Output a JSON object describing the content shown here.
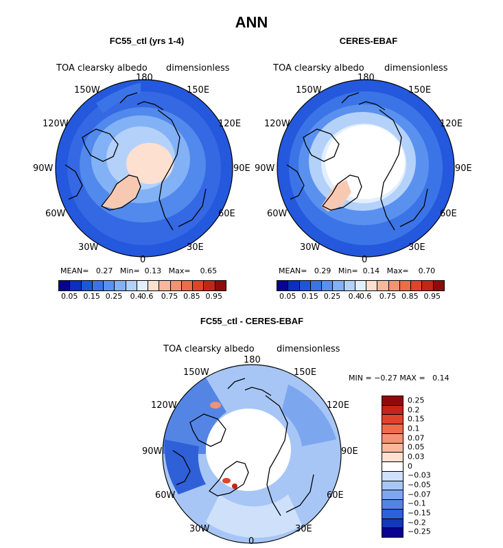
{
  "title": "ANN",
  "chart_data": [
    {
      "type": "polar-map",
      "title": "FC55_ctl (yrs 1-4)",
      "variable": "TOA clearsky albedo",
      "units": "dimensionless",
      "mean_label": "MEAN=",
      "mean": "0.27",
      "min_label": "Min=",
      "min": "0.13",
      "max_label": "Max=",
      "max": "0.65",
      "colorbar_ticks": [
        "0.05",
        "0.15",
        "0.25",
        "0.4",
        "0.6",
        "0.75",
        "0.85",
        "0.95"
      ]
    },
    {
      "type": "polar-map",
      "title": "CERES-EBAF",
      "variable": "TOA clearsky albedo",
      "units": "dimensionless",
      "mean_label": "MEAN=",
      "mean": "0.29",
      "min_label": "Min=",
      "min": "0.14",
      "max_label": "Max=",
      "max": "0.70",
      "colorbar_ticks": [
        "0.05",
        "0.15",
        "0.25",
        "0.4",
        "0.6",
        "0.75",
        "0.85",
        "0.95"
      ]
    },
    {
      "type": "polar-map",
      "title": "FC55_ctl - CERES-EBAF",
      "variable": "TOA clearsky albedo",
      "units": "dimensionless",
      "min_label": "MIN =",
      "min": "−0.27",
      "max_label": "MAX =",
      "max": "0.14",
      "colorbar_ticks": [
        "0.25",
        "0.2",
        "0.15",
        "0.1",
        "0.07",
        "0.05",
        "0.03",
        "0",
        "−0.03",
        "−0.05",
        "−0.07",
        "−0.1",
        "−0.15",
        "−0.2",
        "−0.25"
      ]
    }
  ],
  "longitude_labels": [
    "180",
    "150E",
    "120E",
    "90E",
    "60E",
    "30E",
    "0",
    "30W",
    "60W",
    "90W",
    "120W",
    "150W"
  ],
  "colors": {
    "abs_scale": [
      "#08048f",
      "#0a2fc6",
      "#1f55dc",
      "#3b74e6",
      "#5a91ef",
      "#82b1f5",
      "#b4d1fa",
      "#e2effd",
      "#fde0d0",
      "#f7b89e",
      "#f29372",
      "#ec6c4b",
      "#e2432a",
      "#c42517",
      "#8f0b0b"
    ],
    "diff_scale": [
      "#8f0b0b",
      "#c42517",
      "#e2432a",
      "#ec6c4b",
      "#f29372",
      "#f7b89e",
      "#fde0d0",
      "#ffffff",
      "#cfe1fa",
      "#a7c6f6",
      "#7ca7ef",
      "#5485e5",
      "#2f60d8",
      "#1338bb",
      "#08048f"
    ]
  }
}
